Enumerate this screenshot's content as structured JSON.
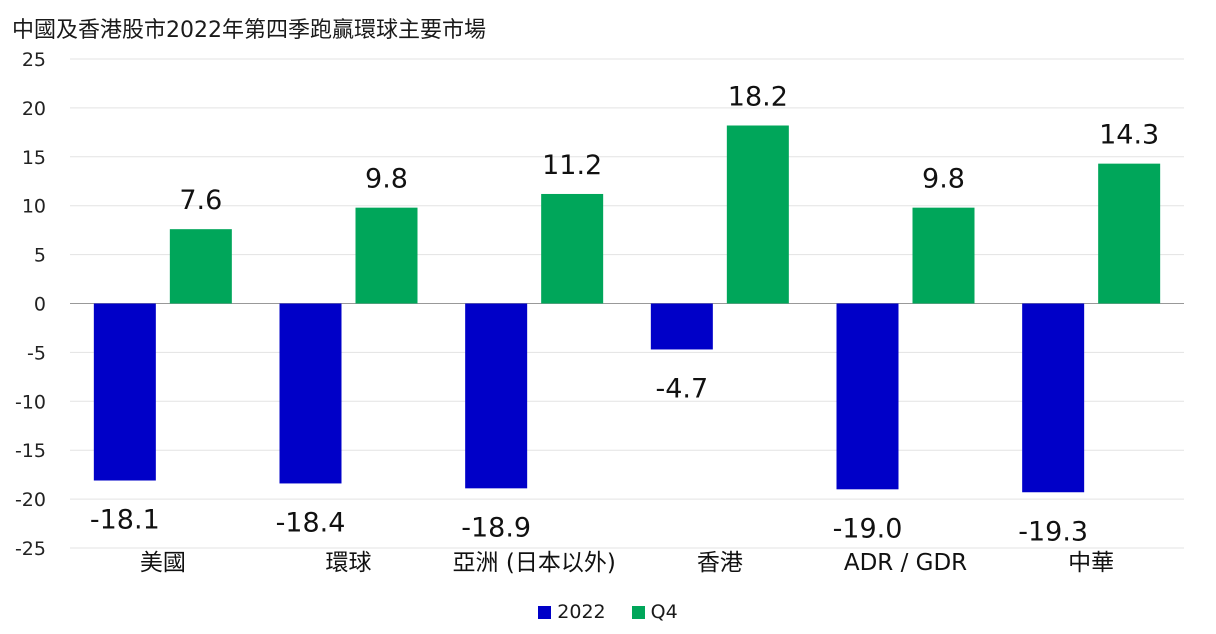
{
  "chart_data": {
    "type": "bar",
    "title": "中國及香港股市2022年第四季跑贏環球主要市場",
    "categories": [
      "美國",
      "環球",
      "亞洲 (日本以外)",
      "香港",
      "ADR / GDR",
      "中華"
    ],
    "series": [
      {
        "name": "2022",
        "color": "#0000c8",
        "values": [
          -18.1,
          -18.4,
          -18.9,
          -4.7,
          -19.0,
          -19.3
        ],
        "labels": [
          "-18.1",
          "-18.4",
          "-18.9",
          "-4.7",
          "-19.0",
          "-19.3"
        ]
      },
      {
        "name": "Q4",
        "color": "#00a65a",
        "values": [
          7.6,
          9.8,
          11.2,
          18.2,
          9.8,
          14.3
        ],
        "labels": [
          "7.6",
          "9.8",
          "11.2",
          "18.2",
          "9.8",
          "14.3"
        ]
      }
    ],
    "ylim": [
      -25,
      25
    ],
    "yticks": [
      25,
      20,
      15,
      10,
      5,
      0,
      -5,
      -10,
      -15,
      -20,
      -25
    ],
    "grid": true,
    "legend_position": "bottom-center"
  }
}
